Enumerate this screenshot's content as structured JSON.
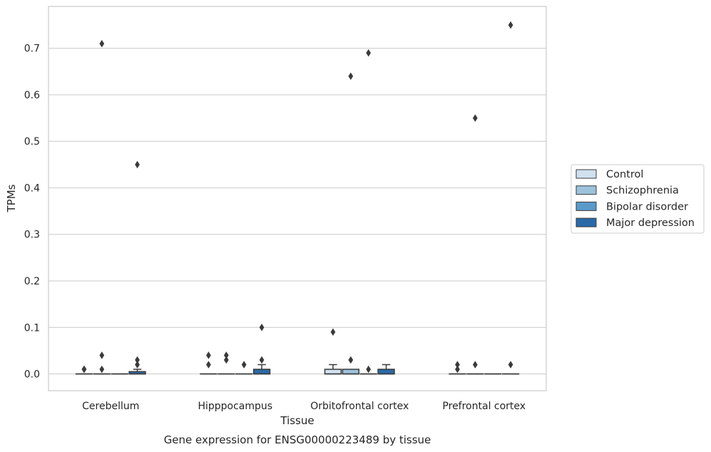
{
  "chart_data": {
    "type": "box",
    "title": "",
    "caption": "Gene expression for ENSG00000223489 by tissue",
    "xlabel": "Tissue",
    "ylabel": "TPMs",
    "ylim": [
      -0.036,
      0.79
    ],
    "yticks": [
      0.0,
      0.1,
      0.2,
      0.3,
      0.4,
      0.5,
      0.6,
      0.7
    ],
    "ytick_labels": [
      "0.0",
      "0.1",
      "0.2",
      "0.3",
      "0.4",
      "0.5",
      "0.6",
      "0.7"
    ],
    "grid": "horizontal",
    "legend_position": "right",
    "categories": [
      "Cerebellum",
      "Hipppocampus",
      "Orbitofrontal cortex",
      "Prefrontal cortex"
    ],
    "series": [
      {
        "name": "Control",
        "color": "#d1e1f0",
        "boxes": [
          {
            "q1": 0,
            "median": 0,
            "q3": 0,
            "whisker_low": 0,
            "whisker_high": 0,
            "outliers": [
              0.01,
              0.01
            ]
          },
          {
            "q1": 0,
            "median": 0,
            "q3": 0,
            "whisker_low": 0,
            "whisker_high": 0,
            "outliers": [
              0.02,
              0.04
            ]
          },
          {
            "q1": 0,
            "median": 0,
            "q3": 0.01,
            "whisker_low": 0,
            "whisker_high": 0.02,
            "outliers": [
              0.09
            ]
          },
          {
            "q1": 0,
            "median": 0,
            "q3": 0,
            "whisker_low": 0,
            "whisker_high": 0,
            "outliers": [
              0.01,
              0.02
            ]
          }
        ]
      },
      {
        "name": "Schizophrenia",
        "color": "#9cc3dc",
        "boxes": [
          {
            "q1": 0,
            "median": 0,
            "q3": 0,
            "whisker_low": 0,
            "whisker_high": 0,
            "outliers": [
              0.01,
              0.04,
              0.71
            ]
          },
          {
            "q1": 0,
            "median": 0,
            "q3": 0,
            "whisker_low": 0,
            "whisker_high": 0,
            "outliers": [
              0.03,
              0.04
            ]
          },
          {
            "q1": 0,
            "median": 0,
            "q3": 0.01,
            "whisker_low": 0,
            "whisker_high": 0.01,
            "outliers": [
              0.03,
              0.64
            ]
          },
          {
            "q1": 0,
            "median": 0,
            "q3": 0,
            "whisker_low": 0,
            "whisker_high": 0,
            "outliers": [
              0.02,
              0.55
            ]
          }
        ]
      },
      {
        "name": "Bipolar disorder",
        "color": "#5a9ac9",
        "boxes": [
          {
            "q1": 0,
            "median": 0,
            "q3": 0,
            "whisker_low": 0,
            "whisker_high": 0,
            "outliers": []
          },
          {
            "q1": 0,
            "median": 0,
            "q3": 0,
            "whisker_low": 0,
            "whisker_high": 0,
            "outliers": [
              0.02
            ]
          },
          {
            "q1": 0,
            "median": 0,
            "q3": 0,
            "whisker_low": 0,
            "whisker_high": 0,
            "outliers": [
              0.01,
              0.69
            ]
          },
          {
            "q1": 0,
            "median": 0,
            "q3": 0,
            "whisker_low": 0,
            "whisker_high": 0,
            "outliers": []
          }
        ]
      },
      {
        "name": "Major depression",
        "color": "#2a6aa8",
        "boxes": [
          {
            "q1": 0,
            "median": 0,
            "q3": 0.005,
            "whisker_low": 0,
            "whisker_high": 0.01,
            "outliers": [
              0.02,
              0.03,
              0.45
            ]
          },
          {
            "q1": 0,
            "median": 0,
            "q3": 0.01,
            "whisker_low": 0,
            "whisker_high": 0.02,
            "outliers": [
              0.03,
              0.1
            ]
          },
          {
            "q1": 0,
            "median": 0,
            "q3": 0.01,
            "whisker_low": 0,
            "whisker_high": 0.02,
            "outliers": []
          },
          {
            "q1": 0,
            "median": 0,
            "q3": 0,
            "whisker_low": 0,
            "whisker_high": 0,
            "outliers": [
              0.02,
              0.75
            ]
          }
        ]
      }
    ]
  }
}
